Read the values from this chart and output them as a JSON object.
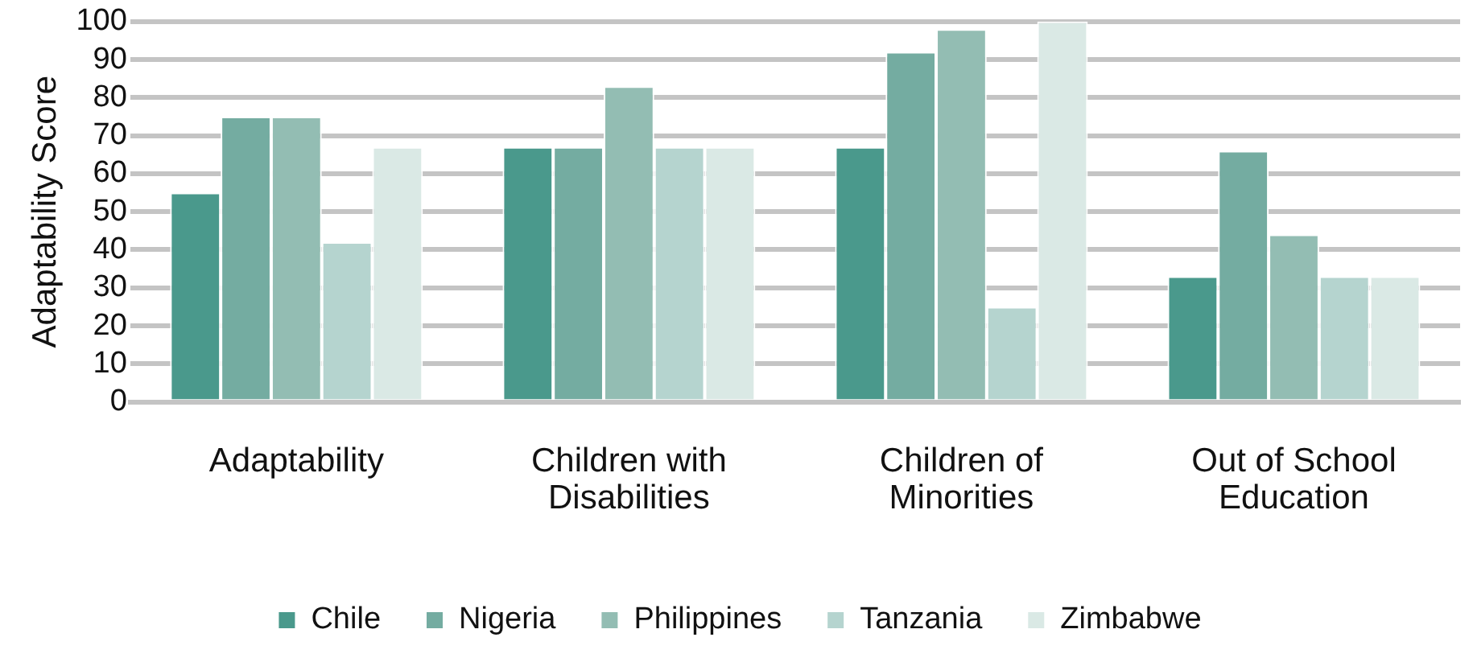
{
  "chart_data": {
    "type": "bar",
    "ylabel": "Adaptability Score",
    "categories": [
      "Adaptability",
      "Children with Disabilities",
      "Children of Minorities",
      "Out of School Education"
    ],
    "series": [
      {
        "name": "Chile",
        "color": "#4a998c",
        "values": [
          55,
          67,
          67,
          33
        ]
      },
      {
        "name": "Nigeria",
        "color": "#74aca1",
        "values": [
          75,
          67,
          92,
          66
        ]
      },
      {
        "name": "Philippines",
        "color": "#93bdb3",
        "values": [
          75,
          83,
          98,
          44
        ]
      },
      {
        "name": "Tanzania",
        "color": "#b5d4cf",
        "values": [
          42,
          67,
          25,
          33
        ]
      },
      {
        "name": "Zimbabwe",
        "color": "#dae9e5",
        "values": [
          67,
          67,
          100,
          33
        ]
      }
    ],
    "ylim": [
      0,
      100
    ],
    "yticks": [
      0,
      10,
      20,
      30,
      40,
      50,
      60,
      70,
      80,
      90,
      100
    ],
    "grid": "y",
    "legend": "bottom"
  }
}
